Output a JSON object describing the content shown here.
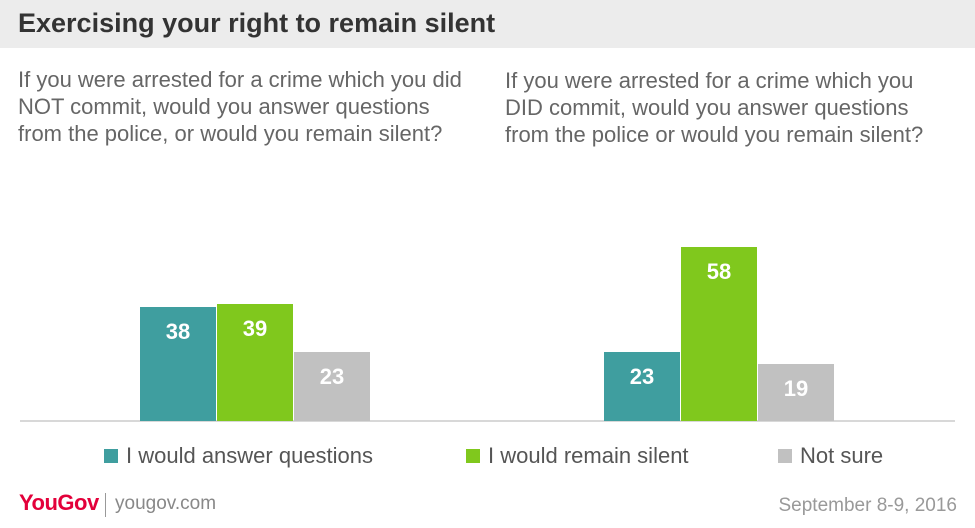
{
  "title": "Exercising your right to remain silent",
  "questions": {
    "left": "If you were arrested for a crime which you did NOT commit, would you answer questions from the police, or would you remain silent?",
    "right": "If you were arrested for a crime which you DID commit, would you answer questions from the police or would you remain silent?"
  },
  "legend": [
    {
      "label": "I would answer questions",
      "color": "#3f9e9f"
    },
    {
      "label": "I would remain silent",
      "color": "#80c81d"
    },
    {
      "label": "Not sure",
      "color": "#c1c1c1"
    }
  ],
  "footer": {
    "logo": "YouGov",
    "site": "yougov.com",
    "date": "September 8-9, 2016"
  },
  "chart_data": {
    "type": "bar",
    "categories": [
      "If you were arrested for a crime which you did NOT commit",
      "If you were arrested for a crime which you DID commit"
    ],
    "series": [
      {
        "name": "I would answer questions",
        "values": [
          38,
          23
        ],
        "color": "#3f9e9f"
      },
      {
        "name": "I would remain silent",
        "values": [
          39,
          58
        ],
        "color": "#80c81d"
      },
      {
        "name": "Not sure",
        "values": [
          23,
          19
        ],
        "color": "#c1c1c1"
      }
    ],
    "ylim": [
      0,
      58
    ],
    "grid": false,
    "legend": "bottom"
  }
}
